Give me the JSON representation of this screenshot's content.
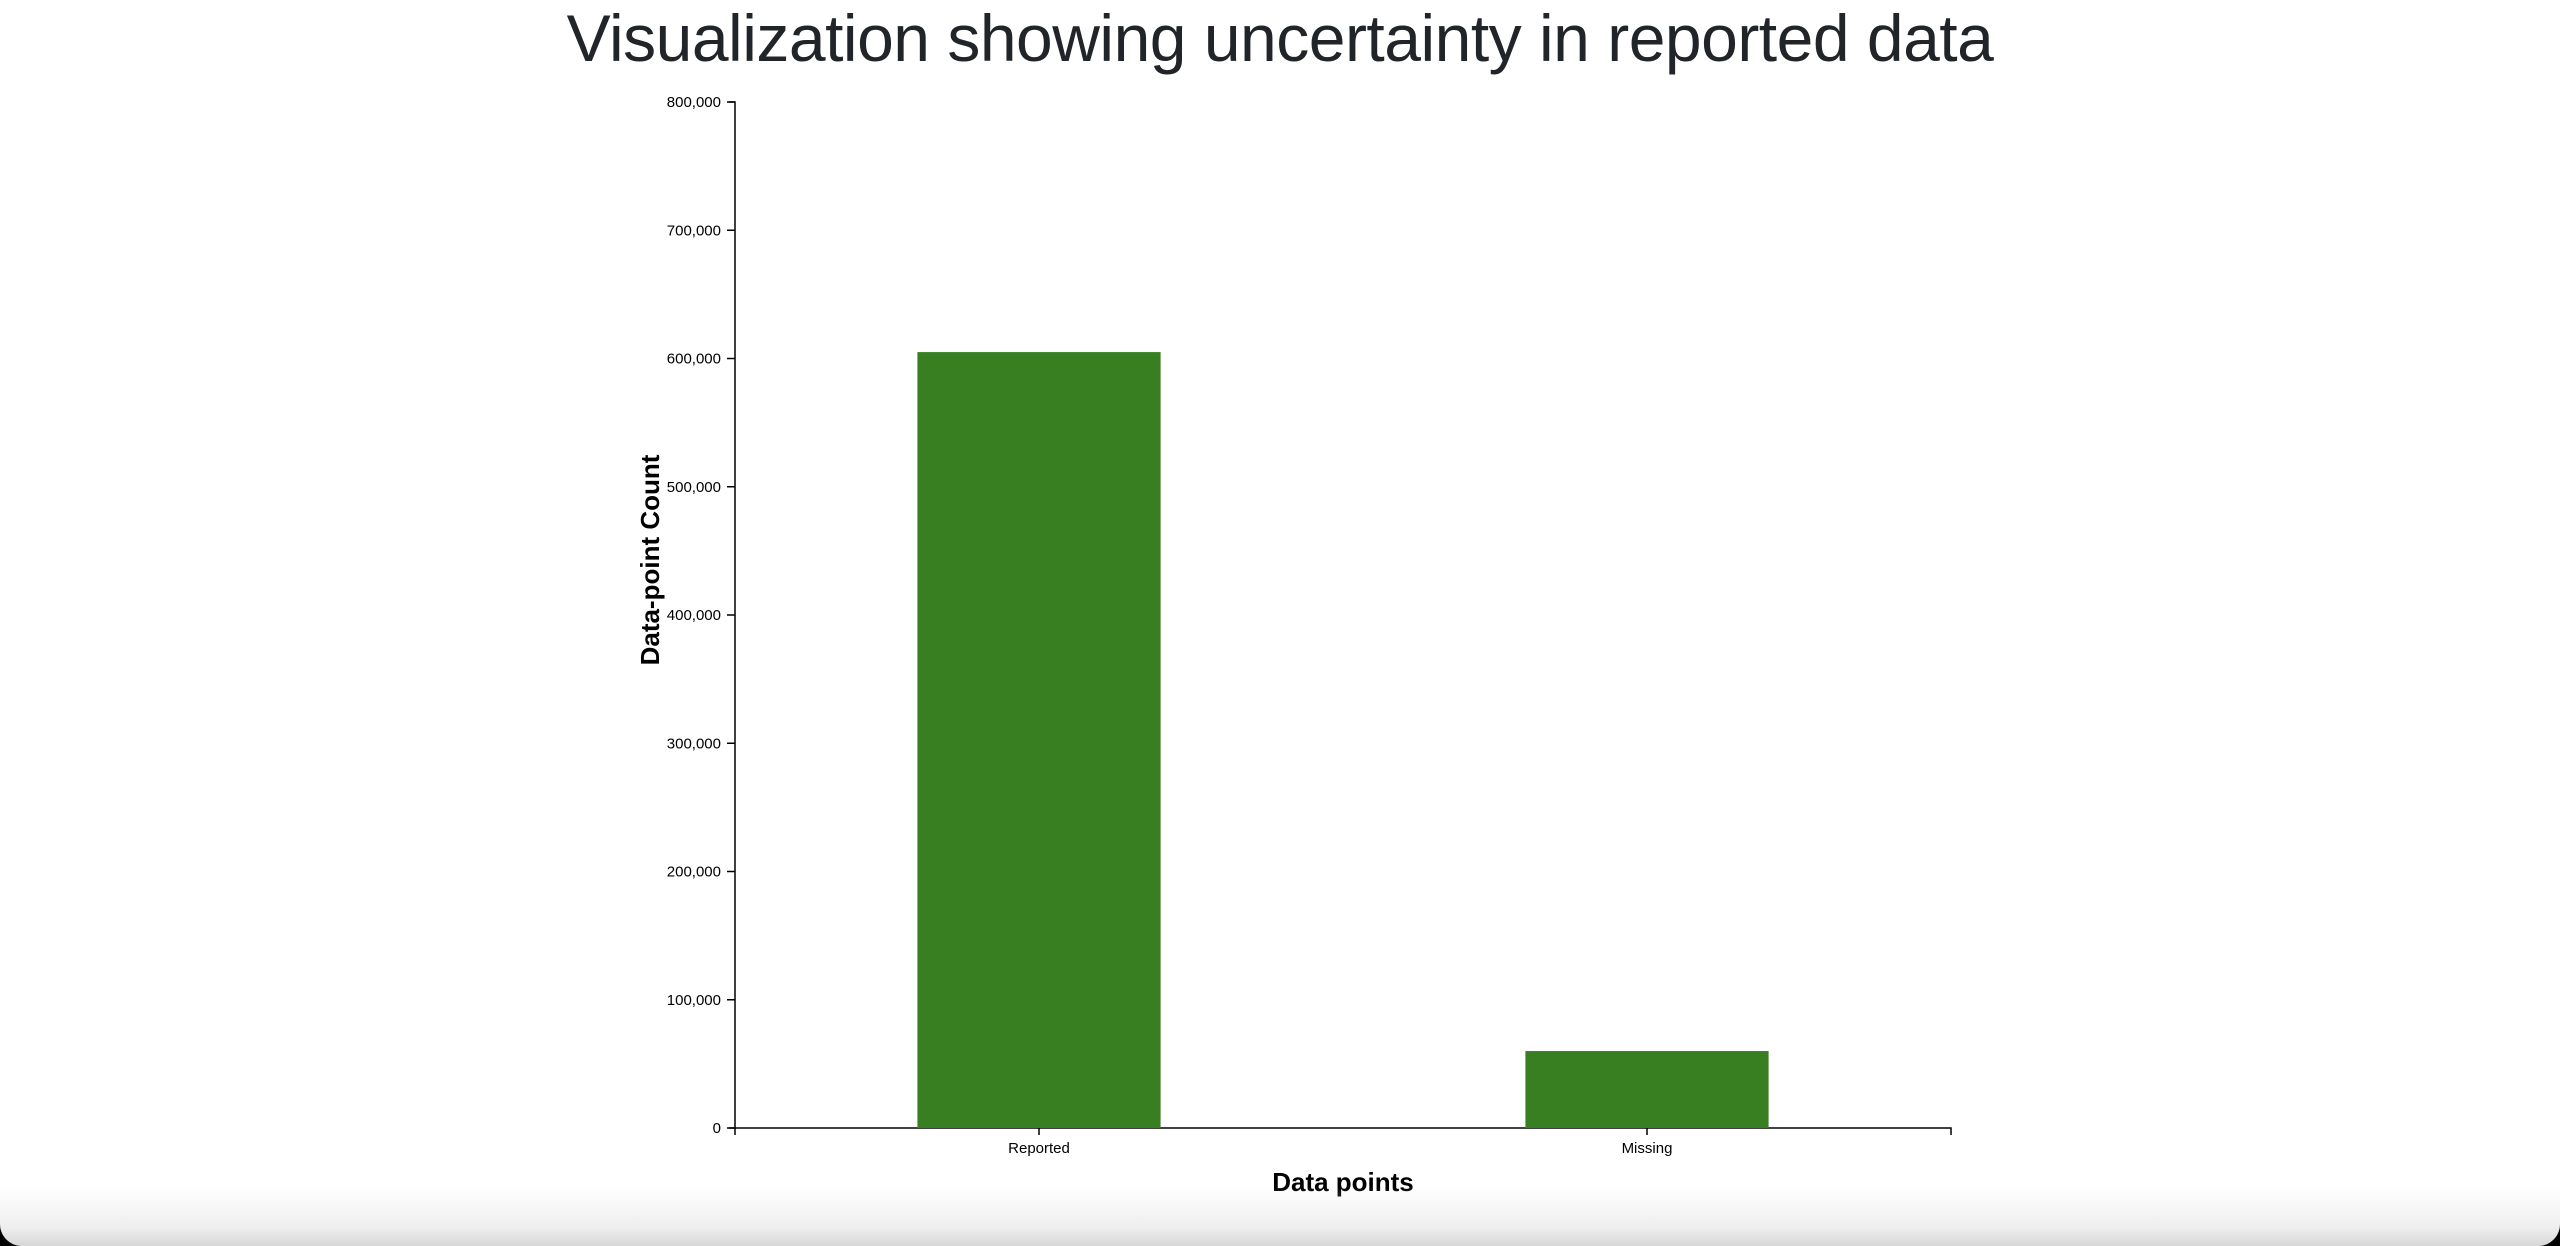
{
  "chart_data": {
    "type": "bar",
    "title": "Visualization showing uncertainty in reported data",
    "xlabel": "Data points",
    "ylabel": "Data-point Count",
    "categories": [
      "Reported",
      "Missing"
    ],
    "values": [
      605000,
      60000
    ],
    "ylim": [
      0,
      800000
    ],
    "yticks": [
      0,
      100000,
      200000,
      300000,
      400000,
      500000,
      600000,
      700000,
      800000
    ],
    "ytick_labels": [
      "0",
      "100,000",
      "200,000",
      "300,000",
      "400,000",
      "500,000",
      "600,000",
      "700,000",
      "800,000"
    ],
    "bar_color": "#387f22",
    "grid": false,
    "legend": "none"
  }
}
